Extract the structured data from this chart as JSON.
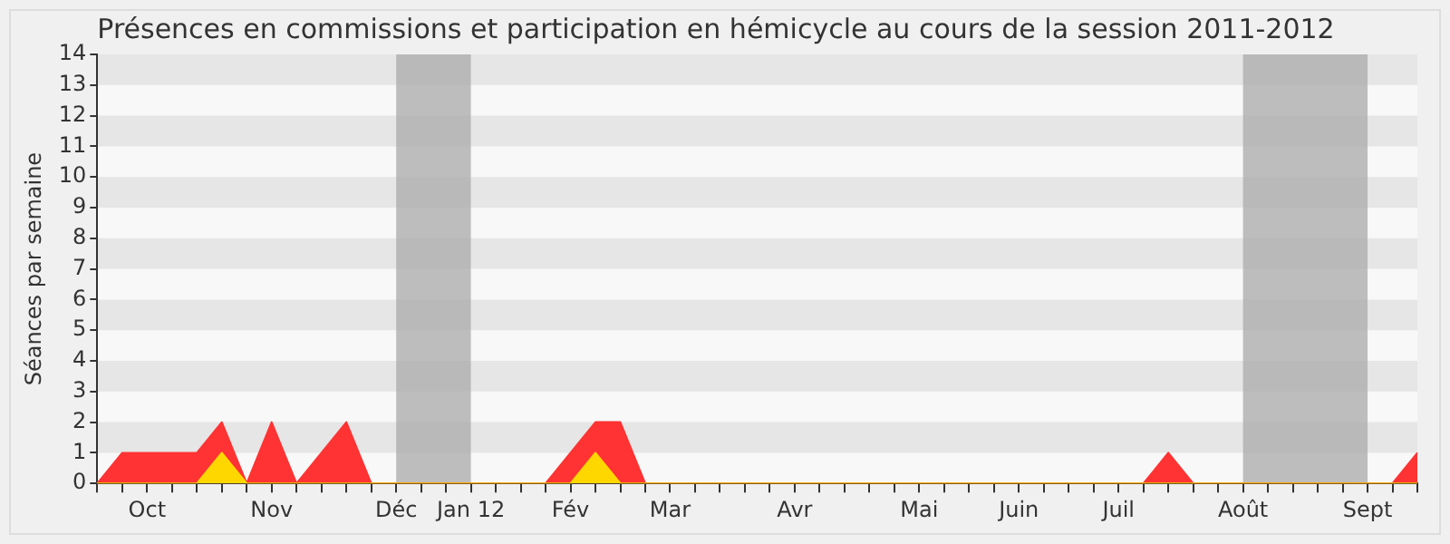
{
  "chart_data": {
    "type": "area",
    "title": "Présences en commissions et participation en hémicycle au cours de la session 2011-2012",
    "ylabel": "Séances par semaine",
    "categories": [
      null,
      null,
      "Oct",
      null,
      null,
      null,
      null,
      "Nov",
      null,
      null,
      null,
      null,
      "Déc",
      null,
      null,
      "Jan 12",
      null,
      null,
      null,
      "Fév",
      null,
      null,
      null,
      "Mar",
      null,
      null,
      null,
      null,
      "Avr",
      null,
      null,
      null,
      null,
      "Mai",
      null,
      null,
      null,
      "Juin",
      null,
      null,
      null,
      "Juil",
      null,
      null,
      null,
      null,
      "Août",
      null,
      null,
      null,
      null,
      "Sept",
      null,
      null
    ],
    "series": [
      {
        "color": "#ff3333",
        "values": [
          0,
          1,
          1,
          1,
          1,
          2,
          0,
          2,
          0,
          1,
          2,
          0,
          0,
          0,
          0,
          0,
          0,
          0,
          0,
          1,
          2,
          2,
          0,
          0,
          0,
          0,
          0,
          0,
          0,
          0,
          0,
          0,
          0,
          0,
          0,
          0,
          0,
          0,
          0,
          0,
          0,
          0,
          0,
          1,
          0,
          0,
          0,
          0,
          0,
          0,
          0,
          0,
          0,
          1
        ]
      },
      {
        "color": "#ffd700",
        "values": [
          0,
          0,
          0,
          0,
          0,
          1,
          0,
          0,
          0,
          0,
          0,
          0,
          0,
          0,
          0,
          0,
          0,
          0,
          0,
          0,
          1,
          0,
          0,
          0,
          0,
          0,
          0,
          0,
          0,
          0,
          0,
          0,
          0,
          0,
          0,
          0,
          0,
          0,
          0,
          0,
          0,
          0,
          0,
          0,
          0,
          0,
          0,
          0,
          0,
          0,
          0,
          0,
          0,
          0
        ]
      }
    ],
    "ylim": [
      0,
      14
    ],
    "yticks": [
      0,
      1,
      2,
      3,
      4,
      5,
      6,
      7,
      8,
      9,
      10,
      11,
      12,
      13,
      14
    ],
    "bands": [
      {
        "axis": "x",
        "from": "Déc",
        "to": "Jan 12",
        "color": "#aaaaaa"
      },
      {
        "axis": "x",
        "from": "Août",
        "to": "Sept",
        "color": "#aaaaaa"
      }
    ]
  }
}
